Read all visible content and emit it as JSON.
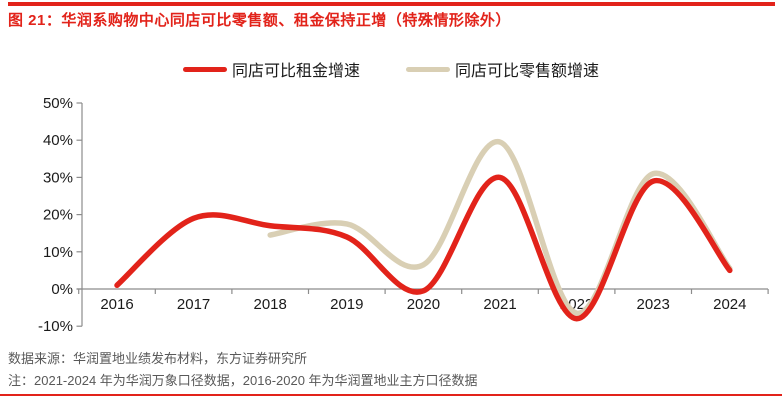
{
  "header": {
    "title": "图 21：华润系购物中心同店可比零售额、租金保持正增（特殊情形除外）",
    "accent_color": "#e2231a"
  },
  "legend": {
    "items": [
      {
        "label": "同店可比租金增速",
        "color": "#e2231a"
      },
      {
        "label": "同店可比零售额增速",
        "color": "#d9cfb4"
      }
    ]
  },
  "chart_data": {
    "type": "line",
    "title": "华润系购物中心同店可比零售额、租金保持正增（特殊情形除外）",
    "x": [
      2016,
      2017,
      2018,
      2019,
      2020,
      2021,
      2022,
      2023,
      2024
    ],
    "series": [
      {
        "name": "同店可比租金增速",
        "color": "#e2231a",
        "values": [
          1,
          19,
          17,
          14,
          -0.5,
          30,
          -8,
          29,
          5
        ]
      },
      {
        "name": "同店可比零售额增速",
        "color": "#d9cfb4",
        "values": [
          null,
          null,
          14.5,
          17.5,
          6.5,
          39.5,
          -6.5,
          31,
          5.5
        ]
      }
    ],
    "xlabel": "",
    "ylabel": "",
    "y_ticks": [
      50,
      40,
      30,
      20,
      10,
      0,
      -10
    ],
    "y_tick_suffix": "%",
    "ylim": [
      -10,
      50
    ],
    "grid": false,
    "smooth": true,
    "legend_position": "top-center",
    "axis_color": "#8c8c8c",
    "tick_label_color": "#1a1a1a"
  },
  "footer": {
    "source": "数据来源：华润置地业绩发布材料，东方证券研究所",
    "note": "注：2021-2024 年为华润万象口径数据，2016-2020 年为华润置地业主方口径数据",
    "text_color": "#595959"
  }
}
